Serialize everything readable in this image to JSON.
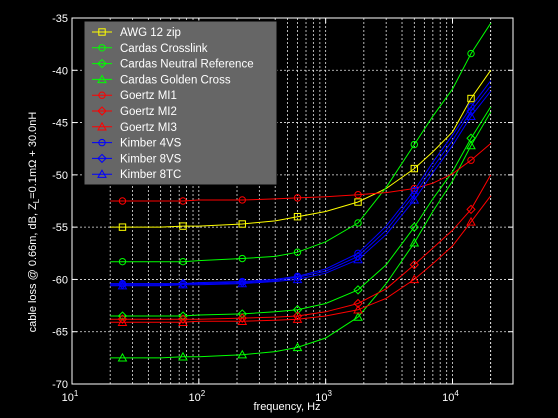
{
  "chart_data": {
    "type": "line",
    "xscale": "log",
    "xlim": [
      10,
      30000
    ],
    "ylim": [
      -70,
      -35
    ],
    "grid": true,
    "legend_position": "top-left",
    "xlabel": "frequency, Hz",
    "ylabel": "cable loss @ 0.66m, dB, Z",
    "ylabel_sub": "L",
    "ylabel_tail": "=0.1mΩ + 30.0nH",
    "x_ticks": [
      {
        "value": 10,
        "base": "10",
        "exp": "1"
      },
      {
        "value": 100,
        "base": "10",
        "exp": "2"
      },
      {
        "value": 1000,
        "base": "10",
        "exp": "3"
      },
      {
        "value": 10000,
        "base": "10",
        "exp": "4"
      }
    ],
    "y_ticks": [
      -35,
      -40,
      -45,
      -50,
      -55,
      -60,
      -65,
      -70
    ],
    "y_tick_labels": [
      "-35",
      "-40",
      "-45",
      "-50",
      "-55",
      "-60",
      "-65",
      "-70"
    ],
    "x": [
      20,
      25,
      50,
      75,
      100,
      220,
      400,
      600,
      1000,
      1800,
      3000,
      5000,
      7000,
      10000,
      14000,
      20000
    ],
    "marker_x": [
      25,
      75,
      220,
      600,
      1800,
      5000,
      14000
    ],
    "series": [
      {
        "name": "AWG 12 zip",
        "color": "#ffff00",
        "marker": "square",
        "values": [
          -55.0,
          -55.0,
          -55.0,
          -54.9,
          -54.9,
          -54.7,
          -54.4,
          -54.0,
          -53.5,
          -52.6,
          -51.3,
          -49.4,
          -47.8,
          -45.9,
          -42.7,
          -40.0
        ]
      },
      {
        "name": "Cardas Crosslink",
        "color": "#00ff00",
        "marker": "circle",
        "values": [
          -58.3,
          -58.3,
          -58.3,
          -58.3,
          -58.2,
          -58.0,
          -57.8,
          -57.4,
          -56.4,
          -54.6,
          -51.2,
          -47.1,
          -44.4,
          -41.8,
          -38.4,
          -35.5
        ]
      },
      {
        "name": "Cardas Neutral Reference",
        "color": "#00ff00",
        "marker": "diamond",
        "values": [
          -63.5,
          -63.5,
          -63.5,
          -63.5,
          -63.4,
          -63.3,
          -63.1,
          -62.9,
          -62.3,
          -61.0,
          -58.6,
          -55.0,
          -52.3,
          -49.7,
          -46.5,
          -43.5
        ]
      },
      {
        "name": "Cardas Golden Cross",
        "color": "#00ff00",
        "marker": "triangle",
        "values": [
          -67.5,
          -67.5,
          -67.5,
          -67.4,
          -67.4,
          -67.2,
          -66.9,
          -66.5,
          -65.6,
          -63.6,
          -60.4,
          -56.5,
          -53.5,
          -50.6,
          -47.2,
          -44.0
        ]
      },
      {
        "name": "Goertz MI1",
        "color": "#ff0000",
        "marker": "circle",
        "values": [
          -52.5,
          -52.5,
          -52.5,
          -52.5,
          -52.4,
          -52.4,
          -52.3,
          -52.2,
          -52.1,
          -51.9,
          -51.7,
          -51.3,
          -50.8,
          -49.9,
          -48.6,
          -47.0
        ]
      },
      {
        "name": "Goertz MI2",
        "color": "#ff0000",
        "marker": "diamond",
        "values": [
          -63.8,
          -63.8,
          -63.8,
          -63.8,
          -63.8,
          -63.7,
          -63.6,
          -63.5,
          -63.1,
          -62.3,
          -60.9,
          -58.6,
          -57.0,
          -55.3,
          -53.3,
          -50.0
        ]
      },
      {
        "name": "Goertz MI3",
        "color": "#ff0000",
        "marker": "triangle",
        "values": [
          -64.1,
          -64.1,
          -64.1,
          -64.1,
          -64.0,
          -64.0,
          -63.9,
          -63.8,
          -63.5,
          -62.9,
          -61.8,
          -60.0,
          -58.5,
          -56.8,
          -54.5,
          -52.0
        ]
      },
      {
        "name": "Kimber 4VS",
        "color": "#0000ff",
        "marker": "circle",
        "values": [
          -60.4,
          -60.4,
          -60.4,
          -60.4,
          -60.3,
          -60.2,
          -60.0,
          -59.7,
          -59.0,
          -57.5,
          -54.9,
          -51.5,
          -48.8,
          -46.2,
          -43.5,
          -41.0
        ]
      },
      {
        "name": "Kimber 8VS",
        "color": "#0000ff",
        "marker": "diamond",
        "values": [
          -60.5,
          -60.5,
          -60.5,
          -60.4,
          -60.4,
          -60.3,
          -60.1,
          -59.8,
          -59.2,
          -57.8,
          -55.3,
          -51.9,
          -49.3,
          -46.7,
          -43.9,
          -41.5
        ]
      },
      {
        "name": "Kimber 8TC",
        "color": "#0000ff",
        "marker": "triangle",
        "values": [
          -60.6,
          -60.6,
          -60.6,
          -60.5,
          -60.5,
          -60.4,
          -60.2,
          -60.0,
          -59.4,
          -58.1,
          -55.7,
          -52.4,
          -49.8,
          -47.2,
          -44.4,
          -42.0
        ]
      }
    ]
  }
}
